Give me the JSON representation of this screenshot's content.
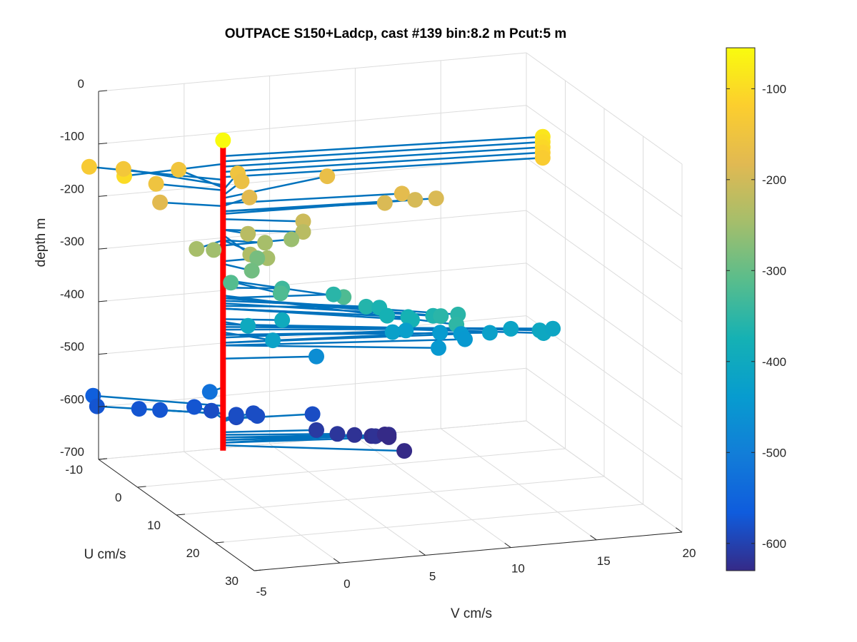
{
  "chart_data": {
    "type": "scatter",
    "projection": "3d",
    "title": "OUTPACE S150+Ladcp, cast #139 bin:8.2 m  Pcut:5 m",
    "xlabel": "V cm/s",
    "ylabel": "U cm/s",
    "zlabel": "depth m",
    "xlim": [
      -5,
      20
    ],
    "ylim": [
      -10,
      30
    ],
    "zlim": [
      -700,
      0
    ],
    "x_ticks": [
      "-5",
      "0",
      "5",
      "10",
      "15",
      "20"
    ],
    "y_ticks": [
      "-10",
      "0",
      "10",
      "20",
      "30"
    ],
    "z_ticks": [
      "0",
      "-100",
      "-200",
      "-300",
      "-400",
      "-500",
      "-600",
      "-700"
    ],
    "grid": true,
    "colorbar": {
      "colormap": "parula",
      "range": [
        -630,
        -55
      ],
      "ticks": [
        "-100",
        "-200",
        "-300",
        "-400",
        "-500",
        "-600"
      ]
    },
    "profile_line_color": "#ff0000",
    "stick_color": "#0072bd",
    "points": [
      {
        "v": 0,
        "u": 0,
        "z": -55
      },
      {
        "v": 18,
        "u": 3,
        "z": -85
      },
      {
        "v": 18,
        "u": 3,
        "z": -95
      },
      {
        "v": 18,
        "u": 3,
        "z": -105
      },
      {
        "v": 18,
        "u": 3,
        "z": -115
      },
      {
        "v": 18,
        "u": 3,
        "z": -125
      },
      {
        "v": -6,
        "u": 1,
        "z": -100
      },
      {
        "v": -6,
        "u": -8,
        "z": -130
      },
      {
        "v": -4,
        "u": -8,
        "z": -140
      },
      {
        "v": -1,
        "u": -7,
        "z": -145
      },
      {
        "v": -3,
        "u": -4,
        "z": -150
      },
      {
        "v": 2,
        "u": -5,
        "z": -150
      },
      {
        "v": 2,
        "u": -4,
        "z": -160
      },
      {
        "v": -3,
        "u": -3,
        "z": -180
      },
      {
        "v": 2,
        "u": -2,
        "z": -180
      },
      {
        "v": 7,
        "u": -4,
        "z": -165
      },
      {
        "v": 10,
        "u": 2,
        "z": -175
      },
      {
        "v": 12,
        "u": 2,
        "z": -190
      },
      {
        "v": 11,
        "u": 1,
        "z": -195
      },
      {
        "v": 9,
        "u": 2,
        "z": -190
      },
      {
        "v": 4,
        "u": 3,
        "z": -205
      },
      {
        "v": 1,
        "u": 2,
        "z": -225
      },
      {
        "v": 4,
        "u": 3,
        "z": -225
      },
      {
        "v": -2,
        "u": 2,
        "z": -245
      },
      {
        "v": -1,
        "u": 2,
        "z": -250
      },
      {
        "v": 2,
        "u": 2,
        "z": -245
      },
      {
        "v": 0,
        "u": 7,
        "z": -235
      },
      {
        "v": 1,
        "u": 7,
        "z": -245
      },
      {
        "v": 4,
        "u": 0,
        "z": -255
      },
      {
        "v": 2,
        "u": 0,
        "z": -285
      },
      {
        "v": 1,
        "u": 3,
        "z": -290
      },
      {
        "v": 0,
        "u": 2,
        "z": -315
      },
      {
        "v": 3,
        "u": 2,
        "z": -335
      },
      {
        "v": 2,
        "u": 6,
        "z": -320
      },
      {
        "v": 5,
        "u": 9,
        "z": -320
      },
      {
        "v": 6,
        "u": 2,
        "z": -355
      },
      {
        "v": 7,
        "u": 6,
        "z": -360
      },
      {
        "v": 8,
        "u": 5,
        "z": -370
      },
      {
        "v": 8,
        "u": 7,
        "z": -375
      },
      {
        "v": 9,
        "u": 8,
        "z": -375
      },
      {
        "v": 9,
        "u": 9,
        "z": -375
      },
      {
        "v": 10,
        "u": 10,
        "z": -365
      },
      {
        "v": 11,
        "u": 12,
        "z": -355
      },
      {
        "v": 10,
        "u": 12,
        "z": -355
      },
      {
        "v": 10,
        "u": 16,
        "z": -350
      },
      {
        "v": 1,
        "u": 2,
        "z": -400
      },
      {
        "v": 3,
        "u": 2,
        "z": -395
      },
      {
        "v": 2,
        "u": 4,
        "z": -420
      },
      {
        "v": 5,
        "u": 2,
        "z": -470
      },
      {
        "v": 9,
        "u": 4,
        "z": -425
      },
      {
        "v": 10,
        "u": 3,
        "z": -430
      },
      {
        "v": 12,
        "u": 3,
        "z": -440
      },
      {
        "v": 13,
        "u": 4,
        "z": -440
      },
      {
        "v": 11,
        "u": 7,
        "z": -445
      },
      {
        "v": 13,
        "u": 5,
        "z": -445
      },
      {
        "v": 14,
        "u": 7,
        "z": -425
      },
      {
        "v": 15,
        "u": 8,
        "z": -415
      },
      {
        "v": 16,
        "u": 11,
        "z": -405
      },
      {
        "v": 16,
        "u": 12,
        "z": -405
      },
      {
        "v": 17,
        "u": 10,
        "z": -410
      },
      {
        "v": -1,
        "u": 1,
        "z": -525
      },
      {
        "v": -6,
        "u": -7,
        "z": -560
      },
      {
        "v": -6,
        "u": -6,
        "z": -575
      },
      {
        "v": -4,
        "u": -4,
        "z": -575
      },
      {
        "v": -3,
        "u": -3,
        "z": -575
      },
      {
        "v": -1,
        "u": -3,
        "z": -575
      },
      {
        "v": 0,
        "u": -3,
        "z": -585
      },
      {
        "v": 1,
        "u": -1,
        "z": -590
      },
      {
        "v": 1,
        "u": -1,
        "z": -585
      },
      {
        "v": 2,
        "u": -1,
        "z": -585
      },
      {
        "v": 2,
        "u": 0,
        "z": -585
      },
      {
        "v": 5,
        "u": 1,
        "z": -585
      },
      {
        "v": 5,
        "u": 2,
        "z": -610
      },
      {
        "v": 6,
        "u": 3,
        "z": -615
      },
      {
        "v": 7,
        "u": 3,
        "z": -620
      },
      {
        "v": 8,
        "u": 3,
        "z": -625
      },
      {
        "v": 8,
        "u": 4,
        "z": -620
      },
      {
        "v": 9,
        "u": 3,
        "z": -625
      },
      {
        "v": 9,
        "u": 3,
        "z": -630
      },
      {
        "v": 9,
        "u": 2,
        "z": -630
      },
      {
        "v": 9,
        "u": 7,
        "z": -635
      }
    ]
  }
}
